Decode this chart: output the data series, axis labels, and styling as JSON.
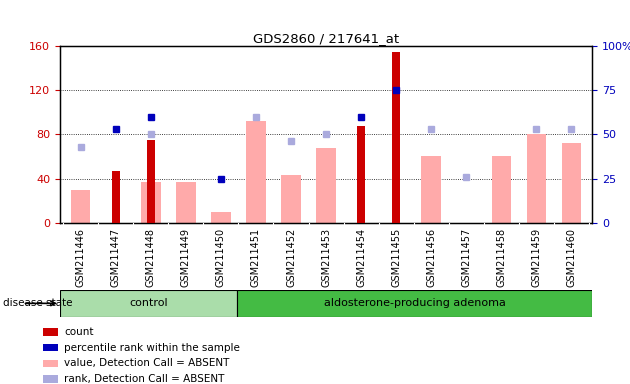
{
  "title": "GDS2860 / 217641_at",
  "samples": [
    "GSM211446",
    "GSM211447",
    "GSM211448",
    "GSM211449",
    "GSM211450",
    "GSM211451",
    "GSM211452",
    "GSM211453",
    "GSM211454",
    "GSM211455",
    "GSM211456",
    "GSM211457",
    "GSM211458",
    "GSM211459",
    "GSM211460"
  ],
  "n_control": 5,
  "n_adenoma": 10,
  "count_bars": [
    0,
    47,
    75,
    0,
    0,
    0,
    0,
    0,
    88,
    155,
    0,
    0,
    0,
    0,
    0
  ],
  "pink_bars": [
    30,
    0,
    37,
    37,
    10,
    92,
    43,
    68,
    0,
    0,
    60,
    0,
    60,
    80,
    72
  ],
  "blue_squares_pct": [
    null,
    53,
    60,
    null,
    25,
    null,
    null,
    null,
    60,
    75,
    null,
    null,
    null,
    null,
    null
  ],
  "light_blue_squares_pct": [
    43,
    null,
    50,
    null,
    null,
    60,
    46,
    50,
    null,
    null,
    53,
    26,
    null,
    53,
    53
  ],
  "ylim_left": [
    0,
    160
  ],
  "ylim_right": [
    0,
    100
  ],
  "yticks_left": [
    0,
    40,
    80,
    120,
    160
  ],
  "yticks_right": [
    0,
    25,
    50,
    75,
    100
  ],
  "disease_state_label": "disease state",
  "control_label": "control",
  "adenoma_label": "aldosterone-producing adenoma",
  "legend_labels": [
    "count",
    "percentile rank within the sample",
    "value, Detection Call = ABSENT",
    "rank, Detection Call = ABSENT"
  ],
  "red_color": "#cc0000",
  "pink_color": "#ffaaaa",
  "blue_color": "#0000bb",
  "light_blue_color": "#aaaadd",
  "control_bg": "#aaddaa",
  "adenoma_bg": "#44bb44",
  "tick_bg": "#cccccc",
  "grid_color": "#000000",
  "pink_bar_width": 0.55,
  "red_bar_width": 0.25
}
